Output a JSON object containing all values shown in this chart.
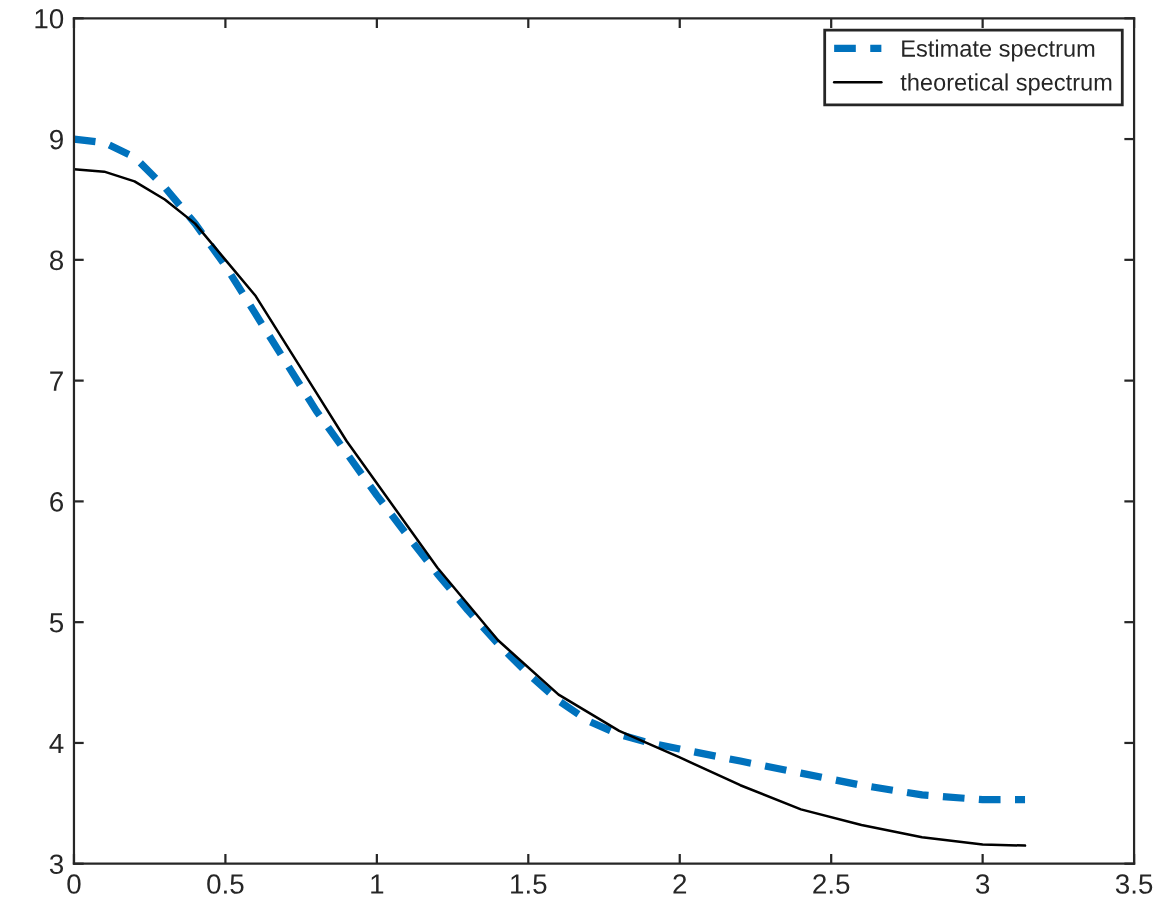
{
  "chart_data": {
    "type": "line",
    "xlim": [
      0,
      3.5
    ],
    "xticks": [
      0,
      0.5,
      1,
      1.5,
      2,
      2.5,
      3,
      3.5
    ],
    "ylim": [
      3,
      10
    ],
    "yticks": [
      3,
      4,
      5,
      6,
      7,
      8,
      9,
      10
    ],
    "grid": false,
    "legend": "top right",
    "series": [
      {
        "name": "Estimate spectrum",
        "color": "#0072bd",
        "line_style": "dashed",
        "x": [
          0,
          0.1,
          0.2,
          0.3,
          0.4,
          0.5,
          0.6,
          0.7,
          0.8,
          0.9,
          1.0,
          1.1,
          1.2,
          1.3,
          1.4,
          1.5,
          1.6,
          1.7,
          1.8,
          1.9,
          2.0,
          2.2,
          2.4,
          2.6,
          2.8,
          3.0,
          3.14
        ],
        "values": [
          9.0,
          8.97,
          8.85,
          8.6,
          8.3,
          7.95,
          7.55,
          7.15,
          6.75,
          6.4,
          6.05,
          5.72,
          5.4,
          5.1,
          4.82,
          4.57,
          4.35,
          4.18,
          4.07,
          4.0,
          3.95,
          3.85,
          3.75,
          3.65,
          3.57,
          3.53,
          3.53
        ]
      },
      {
        "name": "theoretical spectrum",
        "color": "#000000",
        "line_style": "solid",
        "x": [
          0,
          0.1,
          0.2,
          0.3,
          0.4,
          0.5,
          0.6,
          0.7,
          0.8,
          0.9,
          1.0,
          1.2,
          1.4,
          1.6,
          1.8,
          2.0,
          2.2,
          2.4,
          2.6,
          2.8,
          3.0,
          3.14
        ],
        "values": [
          8.75,
          8.73,
          8.65,
          8.5,
          8.3,
          8.0,
          7.7,
          7.3,
          6.9,
          6.5,
          6.15,
          5.45,
          4.85,
          4.4,
          4.1,
          3.88,
          3.65,
          3.45,
          3.32,
          3.22,
          3.16,
          3.15
        ]
      }
    ]
  }
}
